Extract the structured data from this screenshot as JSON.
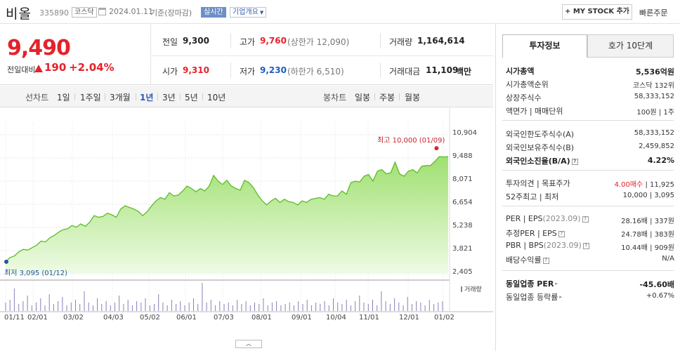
{
  "header": {
    "stock_name": "비올",
    "stock_code": "335890",
    "market": "코스닥",
    "date": "2024.01.11",
    "basis": "기준(장마감)",
    "realtime": "실시간",
    "company_info": "기업개요",
    "my_stock_button": "+ MY STOCK 추가",
    "quick_order": "빠른주문"
  },
  "price": {
    "current": "9,490",
    "change_label": "전일대비",
    "change": "190",
    "change_pct": "+2.04%",
    "prev_close_label": "전일",
    "prev_close": "9,300",
    "open_label": "시가",
    "open": "9,310",
    "high_label": "고가",
    "high": "9,760",
    "upper_limit": "(상한가 12,090)",
    "low_label": "저가",
    "low": "9,230",
    "lower_limit": "(하한가 6,510)",
    "volume_label": "거래량",
    "volume": "1,164,614",
    "amount_label": "거래대금",
    "amount": "11,109",
    "amount_unit": "백만"
  },
  "tabs": {
    "line_chart": "선차트",
    "d1": "1일",
    "w1": "1주일",
    "m3": "3개월",
    "y1": "1년",
    "y3": "3년",
    "y5": "5년",
    "y10": "10년",
    "candle_chart": "봉차트",
    "daily": "일봉",
    "weekly": "주봉",
    "monthly": "월봉"
  },
  "chart_data": {
    "type": "area",
    "y_ticks": [
      "10,904",
      "9,488",
      "8,071",
      "6,654",
      "5,238",
      "3,821",
      "2,405"
    ],
    "ylim": [
      2405,
      10904
    ],
    "x_ticks": [
      "01/11",
      "02/01",
      "03/02",
      "04/03",
      "05/02",
      "06/01",
      "07/03",
      "08/01",
      "09/01",
      "10/04",
      "11/01",
      "12/01",
      "01/02"
    ],
    "max_annotation": "최고 10,000 (01/09)",
    "min_annotation": "최저 3,095 (01/12)",
    "volume_label": "거래량",
    "series": [
      {
        "values": [
          3095,
          3350,
          3450,
          3700,
          3850,
          3800,
          3950,
          4100,
          4350,
          4300,
          4550,
          4700,
          4900,
          5050,
          5100,
          5300,
          5200,
          5400,
          5250,
          5500,
          5900,
          5800,
          5850,
          6050,
          5950,
          5800,
          6300,
          6500,
          6400,
          6300,
          6150,
          5900,
          6150,
          6500,
          6800,
          7000,
          6900,
          7300,
          7100,
          7150,
          7400,
          7700,
          7550,
          7350,
          7550,
          7400,
          7700,
          8350,
          8000,
          7800,
          8050,
          7700,
          7550,
          7450,
          8050,
          7900,
          7600,
          7150,
          6800,
          6550,
          6800,
          6950,
          6700,
          6900,
          6750,
          6700,
          6550,
          6800,
          6700,
          6900,
          6950,
          7000,
          6900,
          7200,
          7100,
          7100,
          7400,
          7200,
          7900,
          8000,
          7950,
          8300,
          8400,
          8000,
          8600,
          8700,
          8450,
          8500,
          9150,
          8450,
          8300,
          8600,
          8700,
          8500,
          8900,
          8950,
          8950,
          9200,
          9500,
          9470,
          9490
        ]
      }
    ],
    "volume": [
      30,
      40,
      80,
      25,
      35,
      55,
      20,
      30,
      45,
      20,
      60,
      25,
      35,
      50,
      20,
      30,
      40,
      25,
      70,
      30,
      20,
      45,
      25,
      35,
      20,
      30,
      55,
      25,
      40,
      20,
      35,
      30,
      45,
      20,
      25,
      60,
      30,
      20,
      40,
      25,
      35,
      20,
      30,
      45,
      25,
      100,
      30,
      40,
      20,
      35,
      25,
      30,
      20,
      40,
      25,
      35,
      20,
      30,
      25,
      45,
      20,
      30,
      35,
      20,
      25,
      30,
      20,
      35,
      25,
      40,
      20,
      30,
      25,
      35,
      20,
      45,
      30,
      25,
      40,
      20,
      35,
      55,
      30,
      25,
      40,
      20,
      70,
      35,
      25,
      45,
      30,
      20,
      50,
      25,
      35,
      30,
      20,
      40,
      25,
      30,
      35
    ]
  },
  "panel": {
    "tab_invest": "투자정보",
    "tab_order": "호가 10단계",
    "market_cap_label": "시가총액",
    "market_cap": "5,536억원",
    "market_cap_rank_label": "시가총액순위",
    "market_cap_rank": "코스닥 132위",
    "shares_label": "상장주식수",
    "shares": "58,333,152",
    "par_label": "액면가 | 매매단위",
    "par": "100원 | 1주",
    "foreign_limit_label": "외국인한도주식수(A)",
    "foreign_limit": "58,333,152",
    "foreign_hold_label": "외국인보유주식수(B)",
    "foreign_hold": "2,459,852",
    "foreign_ratio_label": "외국인소진율(B/A)",
    "foreign_ratio": "4.22%",
    "opinion_label": "투자의견 | 목표주가",
    "opinion": "4.00매수",
    "target": "| 11,925",
    "week52_label": "52주최고 | 최저",
    "week52": "10,000 | 3,095",
    "per_label": "PER | EPS",
    "per_year": "(2023.09)",
    "per": "28.16배 | 337원",
    "est_per_label": "추정PER | EPS",
    "est_per": "24.78배 | 383원",
    "pbr_label": "PBR | BPS",
    "pbr_year": "(2023.09)",
    "pbr": "10.44배 | 909원",
    "dividend_label": "배당수익률",
    "dividend": "N/A",
    "sector_per_label": "동일업종 PER",
    "sector_per": "-45.60배",
    "sector_change_label": "동일업종 등락률",
    "sector_change": "+0.67%",
    "help": "?"
  }
}
